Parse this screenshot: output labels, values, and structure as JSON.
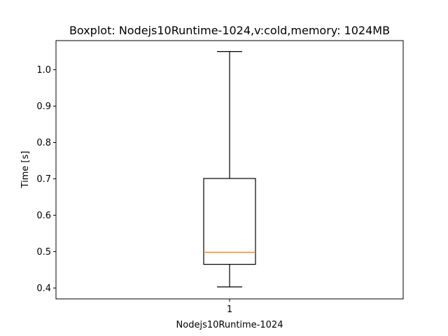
{
  "chart_data": {
    "type": "boxplot",
    "title": "Boxplot: Nodejs10Runtime-1024,v:cold,memory: 1024MB",
    "xlabel": "Nodejs10Runtime-1024",
    "ylabel": "Time [s]",
    "ylim": [
      0.37,
      1.08
    ],
    "yticks": [
      "0.4",
      "0.5",
      "0.6",
      "0.7",
      "0.8",
      "0.9",
      "1.0"
    ],
    "xticks": [
      "1"
    ],
    "grid": false,
    "boxes": [
      {
        "position": 1,
        "whisker_low": 0.403,
        "q1": 0.465,
        "median": 0.498,
        "q3": 0.701,
        "whisker_high": 1.05
      }
    ],
    "colors": {
      "box": "#000000",
      "median": "#ff7f0e",
      "axes": "#000000"
    }
  }
}
